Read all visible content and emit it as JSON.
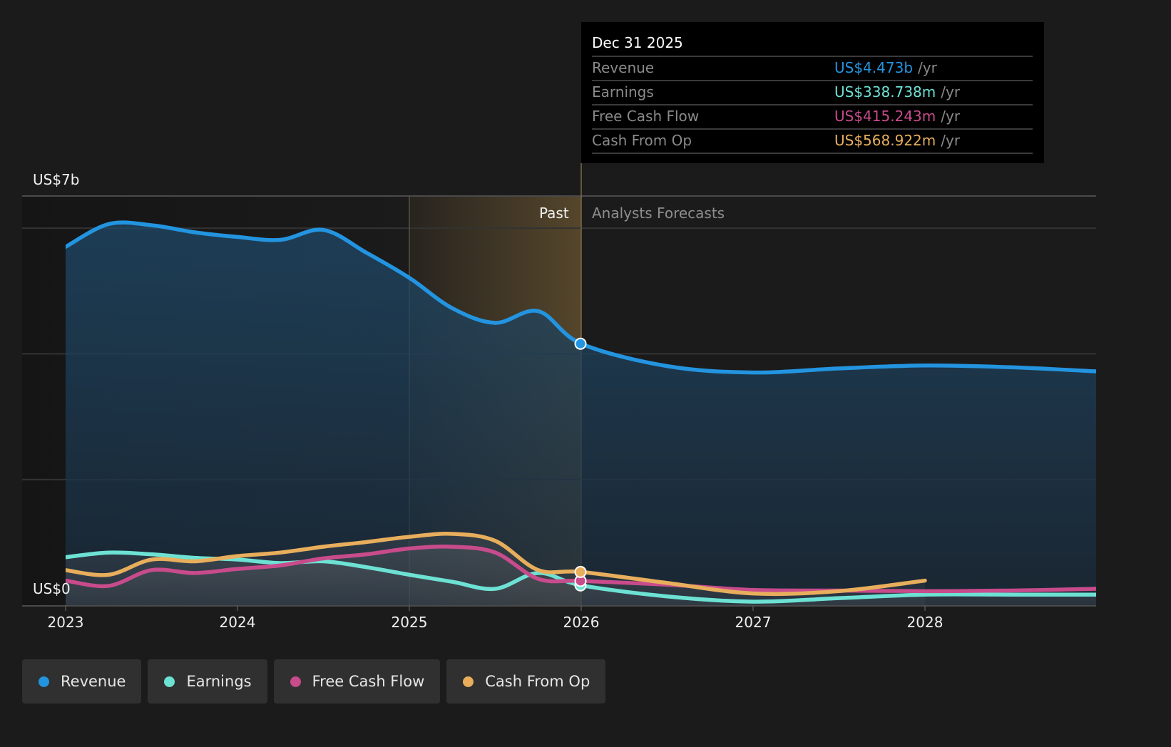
{
  "chart_data": {
    "type": "area",
    "title": "",
    "xlabel": "",
    "ylabel": "",
    "ylim": [
      0,
      7
    ],
    "y_unit": "US$ billions",
    "y_axis_labels": [
      "US$7b",
      "US$0"
    ],
    "xlim": [
      2023,
      2029
    ],
    "x_ticks": [
      "2023",
      "2024",
      "2025",
      "2026",
      "2027",
      "2028"
    ],
    "grid": true,
    "legend_position": "bottom",
    "past_label": "Past",
    "forecast_label": "Analysts Forecasts",
    "divider_x": 2026,
    "shaded_range": [
      2025,
      2026
    ],
    "series": [
      {
        "name": "Revenue",
        "color": "#2394e0",
        "x": [
          2023,
          2023.25,
          2023.5,
          2023.75,
          2024,
          2024.25,
          2024.5,
          2024.75,
          2025,
          2025.25,
          2025.5,
          2025.75,
          2026,
          2026.5,
          2027,
          2027.5,
          2028,
          2028.5,
          2029
        ],
        "values": [
          6.13,
          6.52,
          6.5,
          6.38,
          6.3,
          6.25,
          6.42,
          6.03,
          5.6,
          5.08,
          4.83,
          5.03,
          4.473,
          4.09,
          3.98,
          4.05,
          4.1,
          4.07,
          4.0
        ]
      },
      {
        "name": "Earnings",
        "color": "#6de2d4",
        "x": [
          2023,
          2023.25,
          2023.5,
          2023.75,
          2024,
          2024.25,
          2024.5,
          2024.75,
          2025,
          2025.25,
          2025.5,
          2025.75,
          2026,
          2026.5,
          2027,
          2027.5,
          2028,
          2028.5,
          2029
        ],
        "values": [
          0.82,
          0.9,
          0.87,
          0.81,
          0.78,
          0.72,
          0.75,
          0.65,
          0.52,
          0.4,
          0.28,
          0.55,
          0.338738,
          0.15,
          0.06,
          0.12,
          0.18,
          0.18,
          0.18
        ]
      },
      {
        "name": "Free Cash Flow",
        "color": "#c84b8c",
        "x": [
          2023,
          2023.25,
          2023.5,
          2023.75,
          2024,
          2024.25,
          2024.5,
          2024.75,
          2025,
          2025.25,
          2025.5,
          2025.75,
          2026,
          2026.5,
          2027,
          2027.5,
          2028,
          2028.5,
          2029
        ],
        "values": [
          0.42,
          0.33,
          0.6,
          0.55,
          0.62,
          0.68,
          0.8,
          0.87,
          0.97,
          1.0,
          0.9,
          0.45,
          0.415243,
          0.35,
          0.26,
          0.25,
          0.24,
          0.25,
          0.28
        ]
      },
      {
        "name": "Cash From Op",
        "color": "#e8ae5c",
        "x": [
          2023,
          2023.25,
          2023.5,
          2023.75,
          2024,
          2024.25,
          2024.5,
          2024.75,
          2025,
          2025.25,
          2025.5,
          2025.75,
          2026,
          2026.5,
          2027,
          2027.5,
          2028
        ],
        "values": [
          0.6,
          0.52,
          0.78,
          0.75,
          0.84,
          0.9,
          1.0,
          1.08,
          1.17,
          1.22,
          1.1,
          0.6,
          0.568922,
          0.38,
          0.2,
          0.24,
          0.42
        ]
      }
    ]
  },
  "tooltip": {
    "date": "Dec 31 2025",
    "rows": [
      {
        "label": "Revenue",
        "value": "US$4.473b",
        "unit": "/yr",
        "color": "#2394e0"
      },
      {
        "label": "Earnings",
        "value": "US$338.738m",
        "unit": "/yr",
        "color": "#6de2d4"
      },
      {
        "label": "Free Cash Flow",
        "value": "US$415.243m",
        "unit": "/yr",
        "color": "#c84b8c"
      },
      {
        "label": "Cash From Op",
        "value": "US$568.922m",
        "unit": "/yr",
        "color": "#e8ae5c"
      }
    ]
  },
  "legend": [
    {
      "label": "Revenue",
      "color": "#2394e0"
    },
    {
      "label": "Earnings",
      "color": "#6de2d4"
    },
    {
      "label": "Free Cash Flow",
      "color": "#c84b8c"
    },
    {
      "label": "Cash From Op",
      "color": "#e8ae5c"
    }
  ]
}
